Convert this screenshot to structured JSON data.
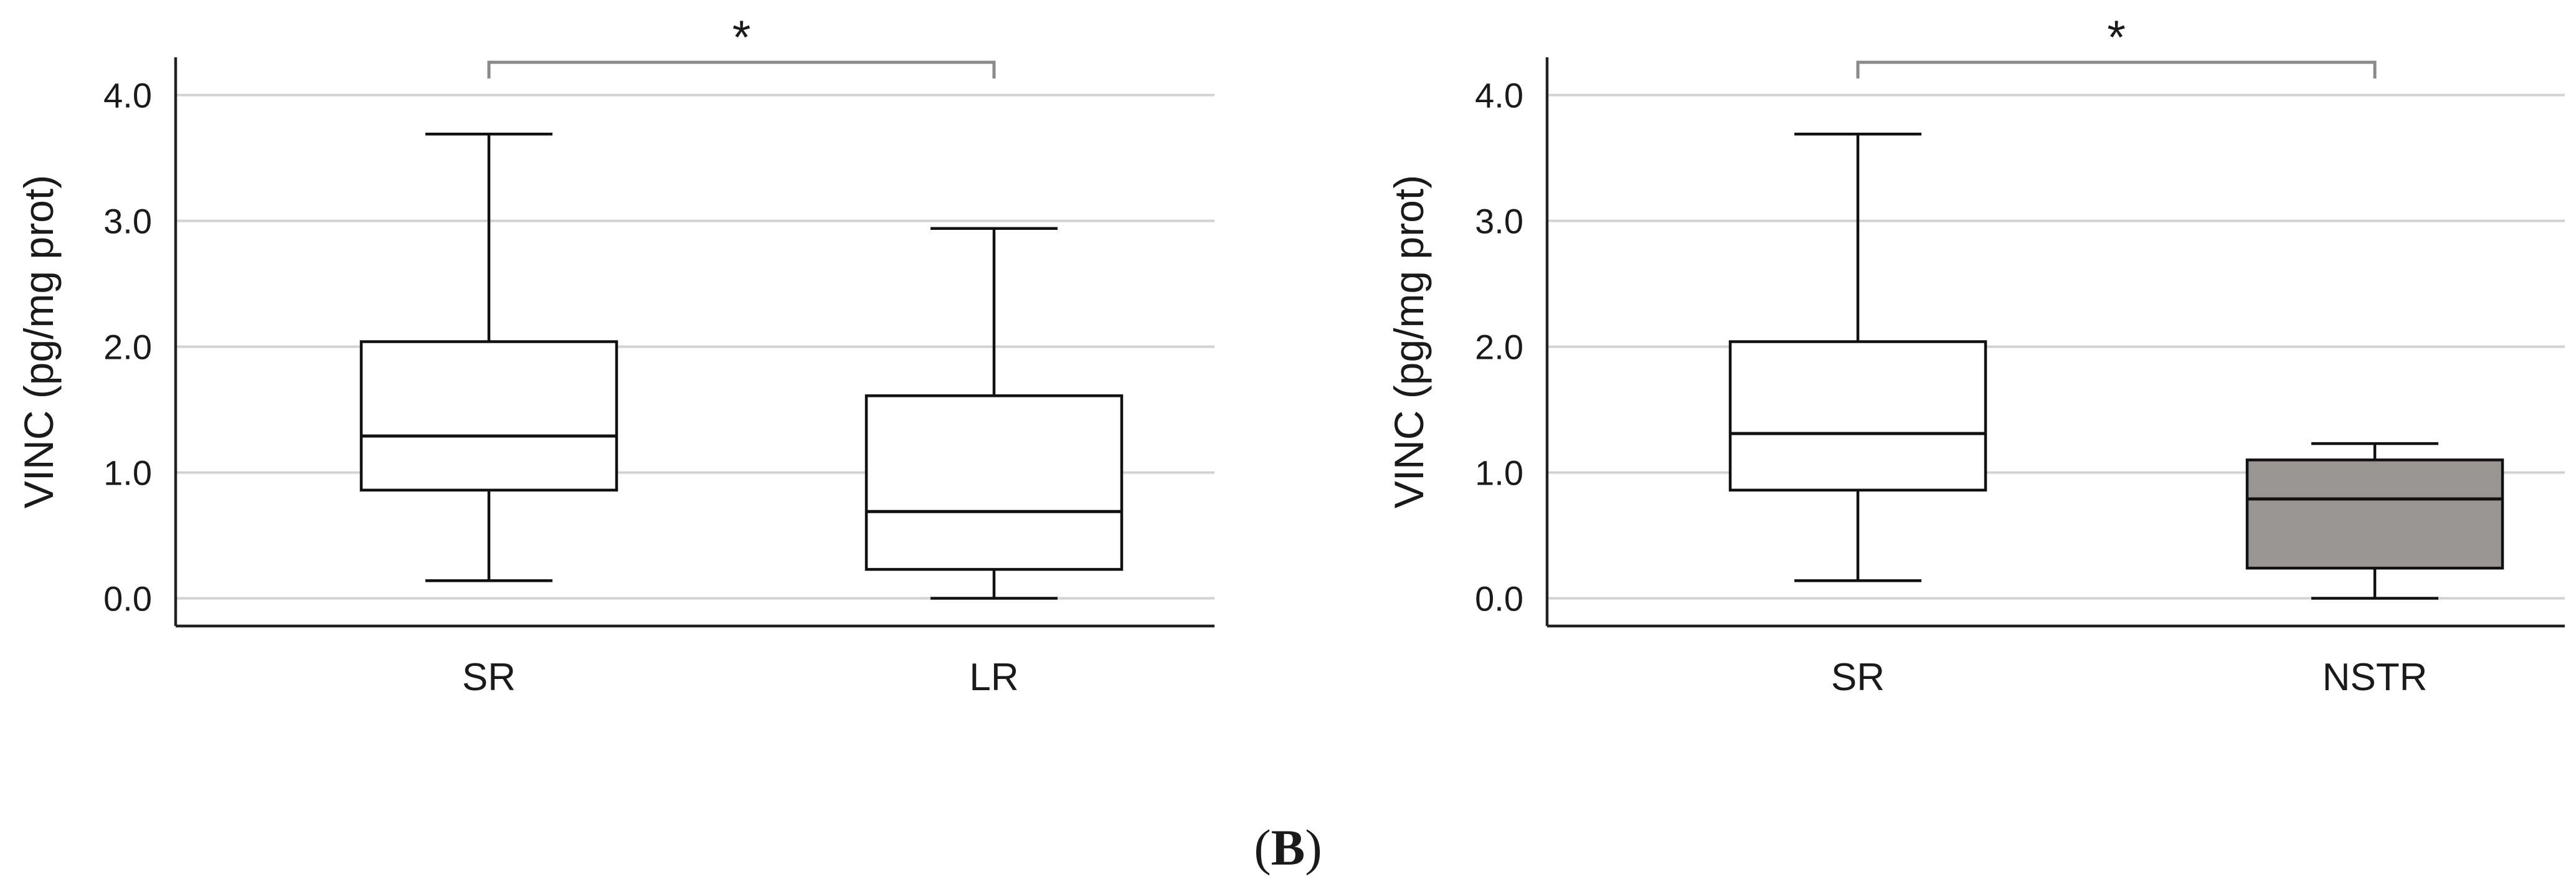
{
  "figure": {
    "panel_label": {
      "open": "(",
      "letter": "B",
      "close": ")"
    }
  },
  "chart_data": [
    {
      "type": "box",
      "ylabel": "VINC (pg/mg prot)",
      "ylim": [
        -0.22,
        4.3
      ],
      "yticks": [
        0.0,
        1.0,
        2.0,
        3.0,
        4.0
      ],
      "ytick_labels": [
        "0.0",
        "1.0",
        "2.0",
        "3.0",
        "4.0"
      ],
      "gridlines": [
        0.0,
        1.0,
        2.0,
        3.0,
        4.0
      ],
      "grid": true,
      "categories": [
        "SR",
        "LR"
      ],
      "boxes": [
        {
          "category": "SR",
          "whisker_low": 0.14,
          "q1": 0.86,
          "median": 1.29,
          "q3": 2.04,
          "whisker_high": 3.69,
          "fill": "#ffffff"
        },
        {
          "category": "LR",
          "whisker_low": 0.0,
          "q1": 0.23,
          "median": 0.69,
          "q3": 1.61,
          "whisker_high": 2.94,
          "fill": "#ffffff"
        }
      ],
      "significance": {
        "from": "SR",
        "to": "LR",
        "label": "*"
      }
    },
    {
      "type": "box",
      "ylabel": "VINC (pg/mg prot)",
      "ylim": [
        -0.22,
        4.3
      ],
      "yticks": [
        0.0,
        1.0,
        2.0,
        3.0,
        4.0
      ],
      "ytick_labels": [
        "0.0",
        "1.0",
        "2.0",
        "3.0",
        "4.0"
      ],
      "gridlines": [
        0.0,
        1.0,
        2.0,
        3.0,
        4.0
      ],
      "grid": true,
      "categories": [
        "SR",
        "NSTR"
      ],
      "boxes": [
        {
          "category": "SR",
          "whisker_low": 0.14,
          "q1": 0.86,
          "median": 1.31,
          "q3": 2.04,
          "whisker_high": 3.69,
          "fill": "#ffffff"
        },
        {
          "category": "NSTR",
          "whisker_low": 0.0,
          "q1": 0.24,
          "median": 0.79,
          "q3": 1.1,
          "whisker_high": 1.23,
          "fill": "#999593"
        }
      ],
      "significance": {
        "from": "SR",
        "to": "NSTR",
        "label": "*"
      }
    }
  ]
}
